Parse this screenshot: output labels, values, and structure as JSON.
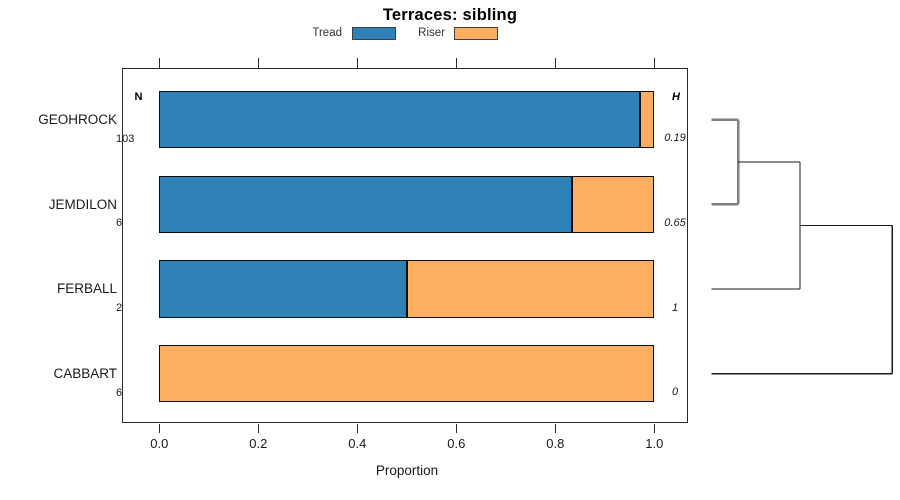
{
  "chart_data": {
    "type": "bar",
    "subtype": "horizontal-stacked-proportion-with-dendrogram",
    "title": "Terraces: sibling",
    "xlabel": "Proportion",
    "xlim": [
      0,
      1
    ],
    "x_tick_labels": [
      "0.0",
      "0.2",
      "0.4",
      "0.6",
      "0.8",
      "1.0"
    ],
    "grid": false,
    "legend_position": "top",
    "n_column_header": "N",
    "h_column_header": "H",
    "legend": [
      {
        "label": "Tread",
        "color": "#2f82b8"
      },
      {
        "label": "Riser",
        "color": "#fcae61"
      }
    ],
    "rows": [
      {
        "category": "GEOHROCK",
        "n": "103",
        "h": "0.19",
        "proportions": [
          0.971,
          0.029
        ]
      },
      {
        "category": "JEMDILON",
        "n": "6",
        "h": "0.65",
        "proportions": [
          0.833,
          0.167
        ]
      },
      {
        "category": "FERBALL",
        "n": "2",
        "h": "1",
        "proportions": [
          0.5,
          0.5
        ]
      },
      {
        "category": "CABBART",
        "n": "6",
        "h": "0",
        "proportions": [
          0,
          1
        ]
      }
    ],
    "dendrogram": {
      "merges": [
        {
          "children": [
            "leaf0",
            "leaf1"
          ],
          "height": 0.147,
          "color": "#7f7f7f",
          "lw": 2.2
        },
        {
          "children": [
            "merge0",
            "leaf2"
          ],
          "height": 0.489,
          "color": "#1a1a1a",
          "lw": 1.3
        },
        {
          "children": [
            "merge1",
            "leaf3"
          ],
          "height": 1.0,
          "color": "#1a1a1a",
          "lw": 1.3
        }
      ]
    }
  }
}
